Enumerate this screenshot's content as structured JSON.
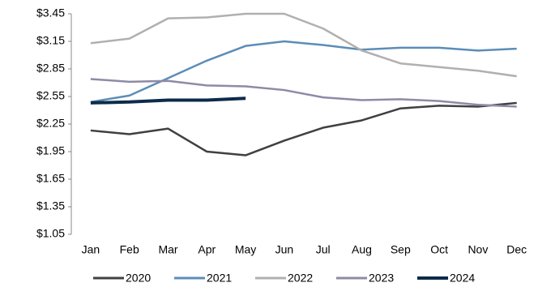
{
  "chart_data": {
    "type": "line",
    "categories": [
      "Jan",
      "Feb",
      "Mar",
      "Apr",
      "May",
      "Jun",
      "Jul",
      "Aug",
      "Sep",
      "Oct",
      "Nov",
      "Dec"
    ],
    "series": [
      {
        "name": "2020",
        "color": "#404040",
        "values": [
          2.18,
          2.14,
          2.2,
          1.95,
          1.91,
          2.07,
          2.21,
          2.29,
          2.42,
          2.45,
          2.44,
          2.48
        ]
      },
      {
        "name": "2021",
        "color": "#5b8db8",
        "values": [
          2.49,
          2.56,
          2.75,
          2.94,
          3.1,
          3.15,
          3.11,
          3.06,
          3.08,
          3.08,
          3.05,
          3.07
        ]
      },
      {
        "name": "2022",
        "color": "#b0b0b0",
        "values": [
          3.13,
          3.18,
          3.4,
          3.41,
          3.45,
          3.45,
          3.29,
          3.05,
          2.91,
          2.87,
          2.83,
          2.77
        ]
      },
      {
        "name": "2023",
        "color": "#8e8aa6",
        "values": [
          2.74,
          2.71,
          2.72,
          2.67,
          2.66,
          2.62,
          2.54,
          2.51,
          2.52,
          2.5,
          2.46,
          2.44
        ]
      },
      {
        "name": "2024",
        "color": "#0d2b4a",
        "values": [
          2.48,
          2.49,
          2.51,
          2.51,
          2.53,
          null,
          null,
          null,
          null,
          null,
          null,
          null
        ]
      }
    ],
    "ylim": [
      1.05,
      3.45
    ],
    "yticks": [
      {
        "value": 1.05,
        "label": "$1.05"
      },
      {
        "value": 1.35,
        "label": "$1.35"
      },
      {
        "value": 1.65,
        "label": "$1.65"
      },
      {
        "value": 1.95,
        "label": "$1.95"
      },
      {
        "value": 2.25,
        "label": "$2.25"
      },
      {
        "value": 2.55,
        "label": "$2.55"
      },
      {
        "value": 2.85,
        "label": "$2.85"
      },
      {
        "value": 3.15,
        "label": "$3.15"
      },
      {
        "value": 3.45,
        "label": "$3.45"
      }
    ],
    "grid": false,
    "legend": "bottom"
  }
}
